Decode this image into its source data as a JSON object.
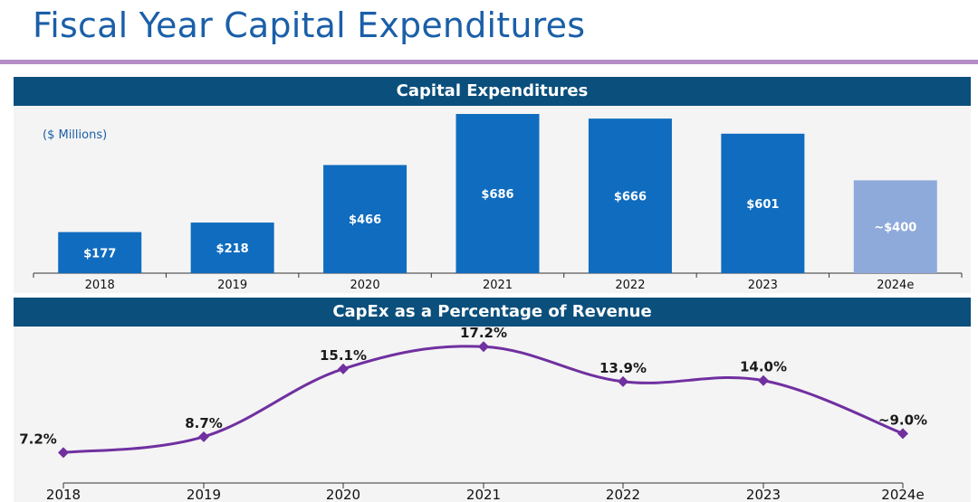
{
  "page": {
    "title": "Fiscal Year Capital Expenditures"
  },
  "colors": {
    "bar": "#0f6cbf",
    "bar_estimate": "#8eaadb",
    "line": "#7030a0",
    "header": "#0b4f7c"
  },
  "chart_data": [
    {
      "type": "bar",
      "title": "Capital Expenditures",
      "units": "($ Millions)",
      "categories": [
        "2018",
        "2019",
        "2020",
        "2021",
        "2022",
        "2023",
        "2024e"
      ],
      "values": [
        177,
        218,
        466,
        686,
        666,
        601,
        400
      ],
      "labels": [
        "$177",
        "$218",
        "$466",
        "$686",
        "$666",
        "$601",
        "~$400"
      ],
      "estimate_flags": [
        false,
        false,
        false,
        false,
        false,
        false,
        true
      ],
      "ylim": [
        0,
        700
      ]
    },
    {
      "type": "line",
      "title": "CapEx as a Percentage of Revenue",
      "categories": [
        "2018",
        "2019",
        "2020",
        "2021",
        "2022",
        "2023",
        "2024e"
      ],
      "values": [
        7.2,
        8.7,
        15.1,
        17.2,
        13.9,
        14.0,
        9.0
      ],
      "labels": [
        "7.2%",
        "8.7%",
        "15.1%",
        "17.2%",
        "13.9%",
        "14.0%",
        "~9.0%"
      ],
      "ylim": [
        0,
        18
      ]
    }
  ]
}
